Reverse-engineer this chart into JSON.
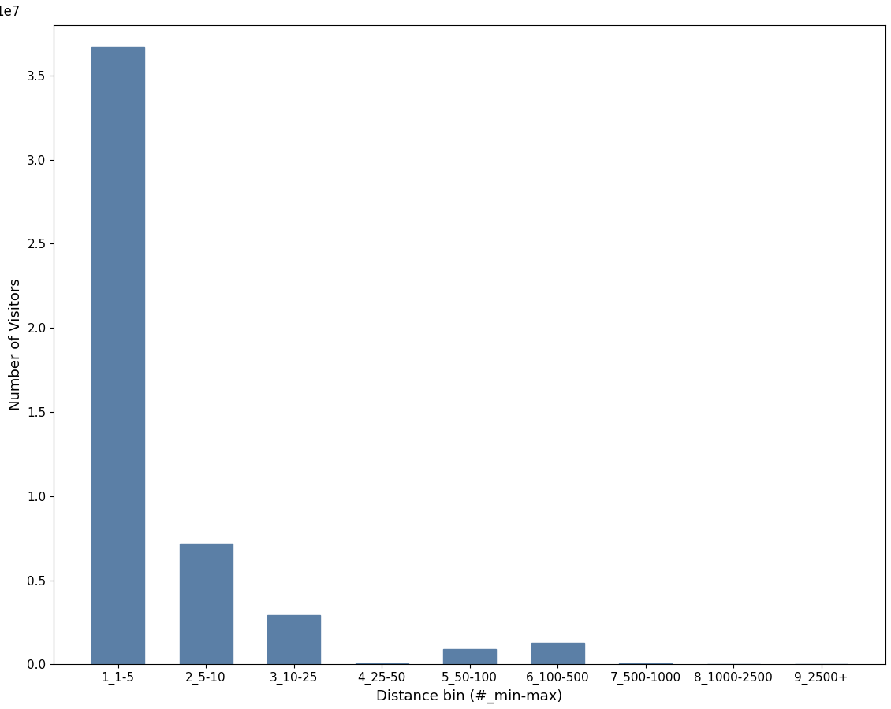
{
  "categories": [
    "1_1-5",
    "2_5-10",
    "3_10-25",
    "4_25-50",
    "5_50-100",
    "6_100-500",
    "7_500-1000",
    "8_1000-2500",
    "9_2500+"
  ],
  "values": [
    36700000,
    7200000,
    2900000,
    80000,
    900000,
    1300000,
    50000,
    30000,
    20000
  ],
  "bar_color": "#5b7fa6",
  "xlabel": "Distance bin (#_min-max)",
  "ylabel": "Number of Visitors",
  "ylim": [
    0,
    38000000
  ],
  "yticks": [
    0,
    5000000,
    10000000,
    15000000,
    20000000,
    25000000,
    30000000,
    35000000
  ],
  "figsize": [
    11.3,
    9.0
  ],
  "dpi": 100
}
